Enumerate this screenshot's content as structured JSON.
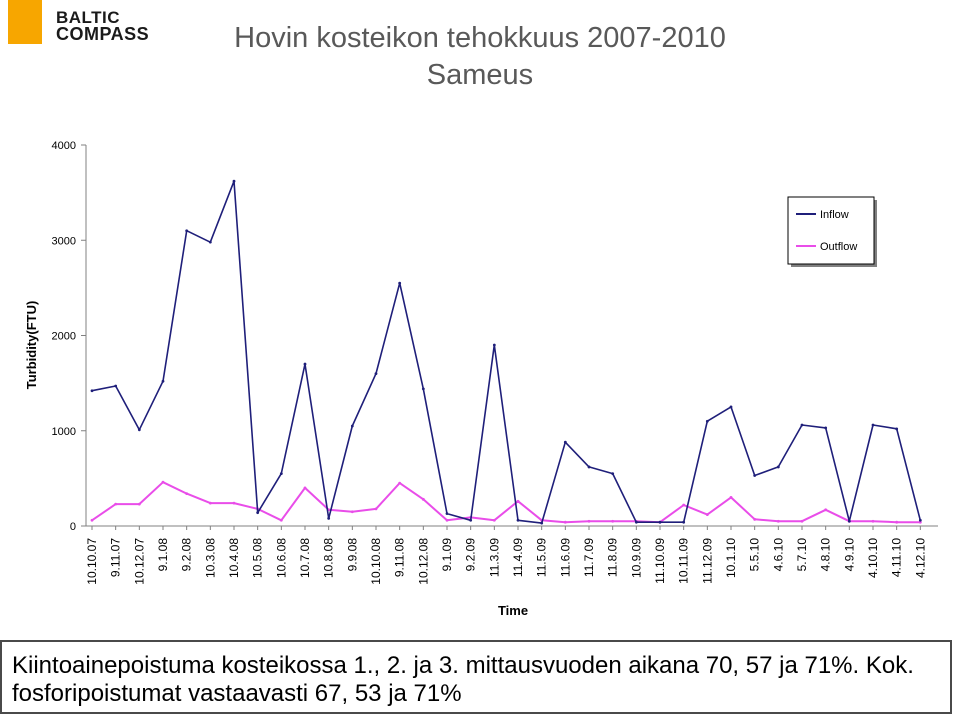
{
  "header": {
    "logo_line1": "BALTIC",
    "logo_line2": "COMPASS",
    "title_line1": "Hovin kosteikon tehokkuus 2007-2010",
    "title_line2": "Sameus"
  },
  "chart_data": {
    "type": "line",
    "xlabel": "Time",
    "ylabel": "Turbidity(FTU)",
    "ylim": [
      0,
      4000
    ],
    "yticks": [
      0,
      1000,
      2000,
      3000,
      4000
    ],
    "grid": false,
    "legend_position": "top-right",
    "x": [
      "10.10.07",
      "9.11.07",
      "10.12.07",
      "9.1.08",
      "9.2.08",
      "10.3.08",
      "10.4.08",
      "10.5.08",
      "10.6.08",
      "10.7.08",
      "10.8.08",
      "9.9.08",
      "10.10.08",
      "9.11.08",
      "10.12.08",
      "9.1.09",
      "9.2.09",
      "11.3.09",
      "11.4.09",
      "11.5.09",
      "11.6.09",
      "11.7.09",
      "11.8.09",
      "10.9.09",
      "11.10.09",
      "10.11.09",
      "11.12.09",
      "10.1.10",
      "5.5.10",
      "4.6.10",
      "5.7.10",
      "4.8.10",
      "4.9.10",
      "4.10.10",
      "4.11.10",
      "4.12.10"
    ],
    "series": [
      {
        "name": "Inflow",
        "color": "#1f1f7a",
        "values": [
          1420,
          1470,
          1010,
          1520,
          3100,
          2980,
          3620,
          140,
          550,
          1700,
          80,
          1050,
          1600,
          2550,
          1440,
          130,
          60,
          1900,
          60,
          30,
          880,
          620,
          550,
          40,
          40,
          40,
          1100,
          1250,
          530,
          620,
          1060,
          1030,
          50,
          1060,
          1020,
          60
        ]
      },
      {
        "name": "Outflow",
        "color": "#e94de9",
        "values": [
          60,
          230,
          230,
          460,
          340,
          240,
          240,
          180,
          60,
          400,
          170,
          150,
          180,
          450,
          280,
          60,
          90,
          60,
          260,
          60,
          40,
          50,
          50,
          50,
          40,
          220,
          120,
          300,
          70,
          50,
          50,
          170,
          50,
          50,
          40,
          40
        ]
      }
    ]
  },
  "caption": {
    "text": "Kiintoainepoistuma kosteikossa 1., 2. ja 3. mittausvuoden aikana 70, 57 ja 71%. Kok. fosforipoistumat vastaavasti 67, 53 ja 71%"
  }
}
